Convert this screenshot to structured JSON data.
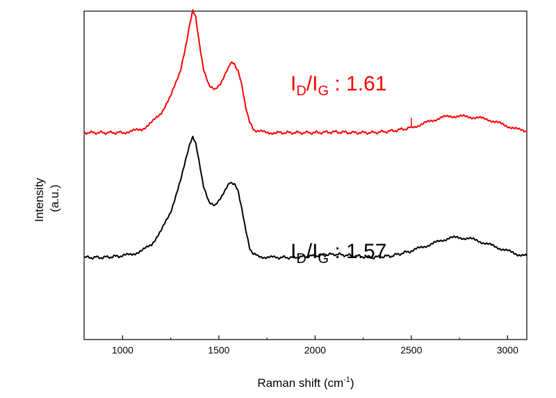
{
  "chart_data": {
    "type": "line",
    "xlabel": "Raman shift (cm",
    "xlabel_sup": "-1",
    "xlabel_end": ")",
    "ylabel_line1": "Intensity",
    "ylabel_line2": "(a.u.)",
    "xlim": [
      800,
      3100
    ],
    "xticks": [
      1000,
      1500,
      2000,
      2500,
      3000
    ],
    "xtick_labels": [
      "1000",
      "1500",
      "2000",
      "2500",
      "3000"
    ],
    "y_ticks_shown": false,
    "series": [
      {
        "color": "#ff0000",
        "peaks_note": "D and G bands offset upper trace",
        "x": [
          800,
          900,
          1000,
          1050,
          1100,
          1150,
          1200,
          1250,
          1300,
          1330,
          1350,
          1365,
          1380,
          1400,
          1420,
          1450,
          1480,
          1510,
          1540,
          1560,
          1580,
          1600,
          1620,
          1640,
          1660,
          1680,
          1700,
          1750,
          1800,
          1900,
          2000,
          2100,
          2200,
          2300,
          2400,
          2500,
          2550,
          2600,
          2650,
          2700,
          2750,
          2800,
          2850,
          2900,
          2950,
          3000,
          3050,
          3100
        ],
        "y": [
          0.63,
          0.63,
          0.63,
          0.635,
          0.64,
          0.66,
          0.69,
          0.74,
          0.82,
          0.9,
          0.96,
          1.0,
          0.98,
          0.9,
          0.82,
          0.77,
          0.76,
          0.78,
          0.82,
          0.84,
          0.84,
          0.82,
          0.77,
          0.71,
          0.66,
          0.64,
          0.635,
          0.63,
          0.63,
          0.63,
          0.63,
          0.632,
          0.63,
          0.63,
          0.635,
          0.645,
          0.655,
          0.665,
          0.675,
          0.68,
          0.68,
          0.678,
          0.675,
          0.67,
          0.66,
          0.65,
          0.64,
          0.635
        ]
      },
      {
        "color": "#000000",
        "x": [
          800,
          900,
          1000,
          1050,
          1100,
          1150,
          1200,
          1250,
          1300,
          1330,
          1350,
          1365,
          1380,
          1400,
          1420,
          1450,
          1480,
          1510,
          1540,
          1560,
          1580,
          1600,
          1620,
          1640,
          1660,
          1680,
          1700,
          1750,
          1800,
          1900,
          2000,
          2100,
          2200,
          2300,
          2400,
          2500,
          2550,
          2600,
          2650,
          2700,
          2750,
          2800,
          2850,
          2900,
          2950,
          3000,
          3050,
          3100
        ],
        "y": [
          0.25,
          0.25,
          0.255,
          0.26,
          0.27,
          0.29,
          0.33,
          0.39,
          0.48,
          0.55,
          0.6,
          0.62,
          0.6,
          0.53,
          0.47,
          0.42,
          0.41,
          0.43,
          0.46,
          0.48,
          0.475,
          0.45,
          0.4,
          0.33,
          0.28,
          0.26,
          0.255,
          0.25,
          0.25,
          0.25,
          0.255,
          0.26,
          0.255,
          0.25,
          0.255,
          0.27,
          0.28,
          0.29,
          0.3,
          0.31,
          0.31,
          0.308,
          0.3,
          0.29,
          0.28,
          0.27,
          0.26,
          0.255
        ]
      }
    ],
    "annotations": [
      {
        "main": "I",
        "sub1": "D",
        "slash": "/I",
        "sub2": "G",
        "value": " : 1.61",
        "color": "#ff0000",
        "x": 2180,
        "y": 0.85
      },
      {
        "main": "I",
        "sub1": "D",
        "slash": "/I",
        "sub2": "G",
        "value": " : 1.57",
        "color": "#000000",
        "x": 2180,
        "y": 0.4
      }
    ]
  }
}
